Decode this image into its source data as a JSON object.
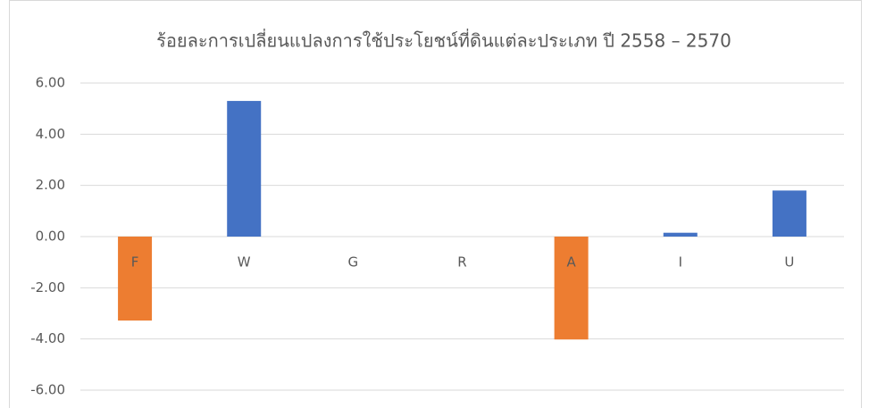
{
  "chart_data": {
    "type": "bar",
    "title": "ร้อยละการเปลี่ยนแปลงการใช้ประโยชน์ที่ดินแต่ละประเภท ปี 2558 – 2570",
    "categories": [
      "F",
      "W",
      "G",
      "R",
      "A",
      "I",
      "U"
    ],
    "values": [
      -3.28,
      5.3,
      0,
      0,
      -4.02,
      0.15,
      1.8
    ],
    "positive_color": "#4472c4",
    "negative_color": "#ed7d31",
    "ylim": [
      -6,
      6
    ],
    "yticks": [
      {
        "value": 6,
        "label": "6.00"
      },
      {
        "value": 4,
        "label": "4.00"
      },
      {
        "value": 2,
        "label": "2.00"
      },
      {
        "value": 0,
        "label": "0.00"
      },
      {
        "value": -2,
        "label": "-2.00"
      },
      {
        "value": -4,
        "label": "-4.00"
      },
      {
        "value": -6,
        "label": "-6.00"
      }
    ],
    "grid": true
  }
}
